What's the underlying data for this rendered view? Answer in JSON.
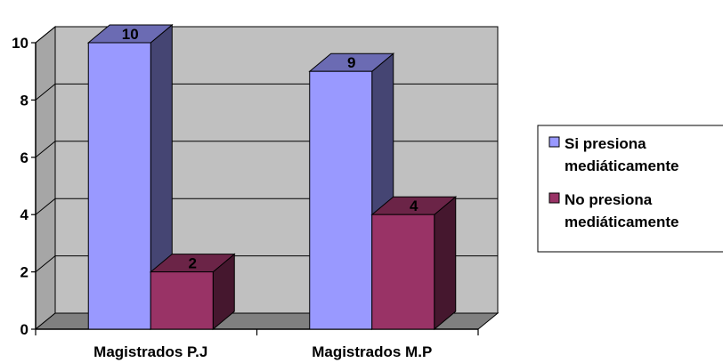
{
  "chart_data": {
    "type": "bar",
    "style": "3d-clustered-column",
    "categories": [
      "Magistrados P.J",
      "Magistrados M.P"
    ],
    "series": [
      {
        "name": "Si presiona mediáticamente",
        "legend_lines": [
          "Si presiona",
          "mediáticamente"
        ],
        "values": [
          10,
          9
        ],
        "color": "#9999ff"
      },
      {
        "name": "No presiona mediáticamente",
        "legend_lines": [
          "No presiona",
          "mediáticamente"
        ],
        "values": [
          2,
          4
        ],
        "color": "#993366"
      }
    ],
    "data_labels": [
      [
        "10",
        "9"
      ],
      [
        "2",
        "4"
      ]
    ],
    "ylim": [
      0,
      10
    ],
    "yticks": [
      0,
      2,
      4,
      6,
      8,
      10
    ],
    "ytick_labels": [
      "0",
      "2",
      "4",
      "6",
      "8",
      "10"
    ],
    "grid": true,
    "legend_position": "right",
    "plot_wall_color": "#c0c0c0",
    "floor_color": "#808080",
    "title": "",
    "xlabel": "",
    "ylabel": ""
  }
}
